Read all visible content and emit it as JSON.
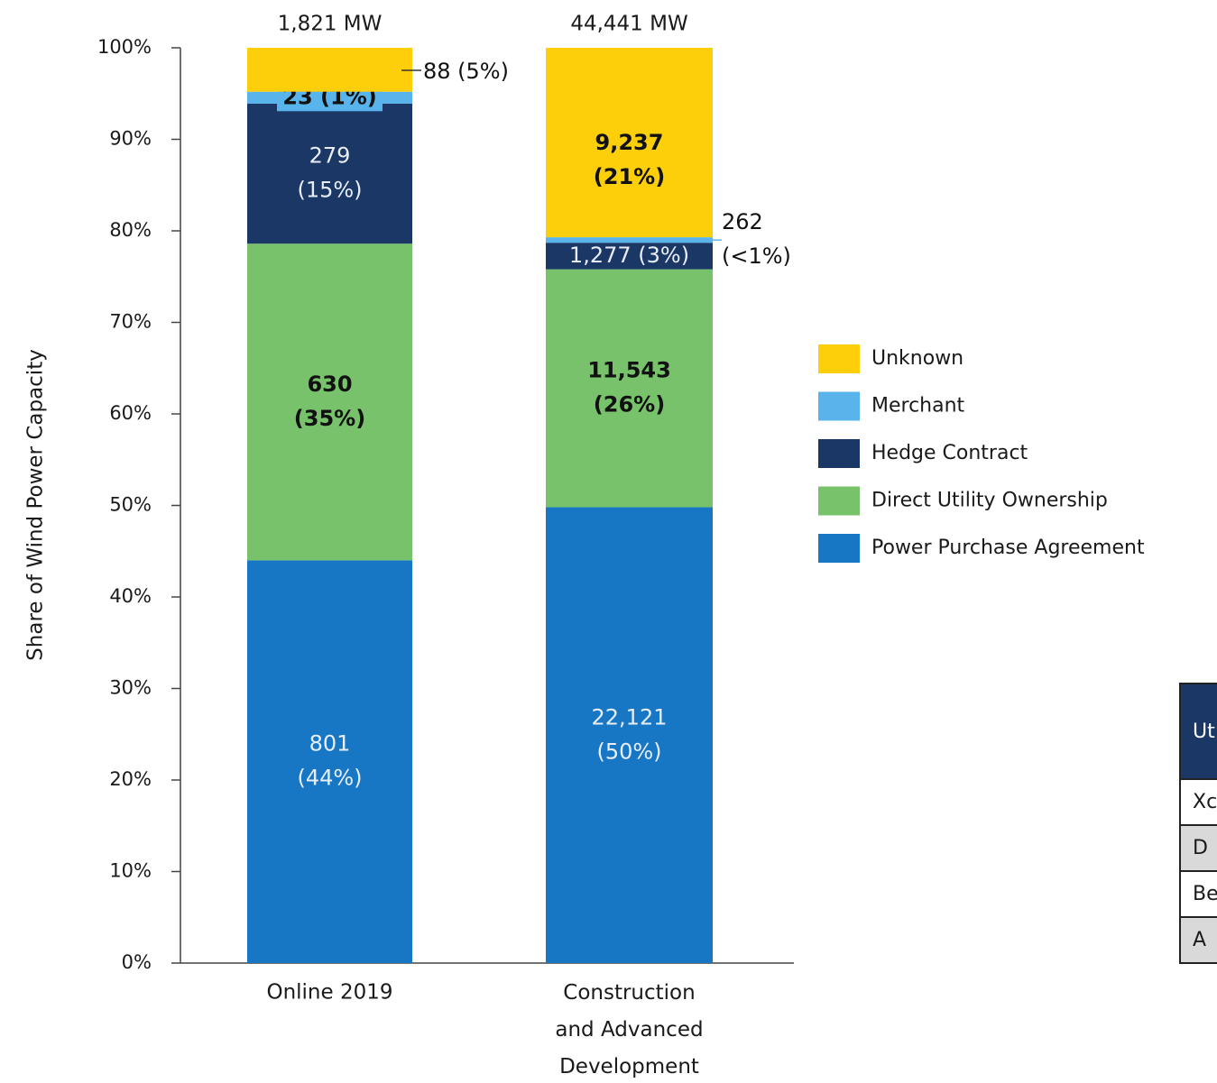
{
  "chart_data": {
    "type": "stacked_bar",
    "y_axis_label": "Share of Wind Power Capacity",
    "categories": [
      "Online 2019",
      "Construction\nand Advanced\nDevelopment"
    ],
    "totals_labels": [
      "1,821 MW",
      "44,441 MW"
    ],
    "ylim": [
      0,
      100
    ],
    "yticks": [
      {
        "value": 0,
        "label": "0%"
      },
      {
        "value": 10,
        "label": "10%"
      },
      {
        "value": 20,
        "label": "20%"
      },
      {
        "value": 30,
        "label": "30%"
      },
      {
        "value": 40,
        "label": "40%"
      },
      {
        "value": 50,
        "label": "50%"
      },
      {
        "value": 60,
        "label": "60%"
      },
      {
        "value": 70,
        "label": "70%"
      },
      {
        "value": 80,
        "label": "80%"
      },
      {
        "value": 90,
        "label": "90%"
      },
      {
        "value": 100,
        "label": "100%"
      }
    ],
    "series": [
      {
        "name": "Power Purchase Agreement",
        "color": "#1777c4",
        "values": [
          44.0,
          49.8
        ],
        "value_labels": [
          "801\n(44%)",
          "22,121\n(50%)"
        ]
      },
      {
        "name": "Direct Utility Ownership",
        "color": "#77c26a",
        "values": [
          34.6,
          26.0
        ],
        "value_labels": [
          "630\n(35%)",
          "11,543\n(26%)"
        ]
      },
      {
        "name": "Hedge Contract",
        "color": "#1b3766",
        "values": [
          15.3,
          2.9
        ],
        "value_labels": [
          "279\n(15%)",
          "1,277 (3%)"
        ]
      },
      {
        "name": "Merchant",
        "color": "#5ab4ec",
        "values": [
          1.3,
          0.6
        ],
        "value_labels": [
          "23 (1%)",
          "262\n(<1%)"
        ]
      },
      {
        "name": "Unknown",
        "color": "#fccf0a",
        "values": [
          4.8,
          20.7
        ],
        "value_labels": [
          "88 (5%)",
          "9,237\n(21%)"
        ]
      }
    ]
  },
  "table": {
    "header": "Ut",
    "rows": [
      "Xc",
      "D",
      "Be",
      "A"
    ]
  }
}
